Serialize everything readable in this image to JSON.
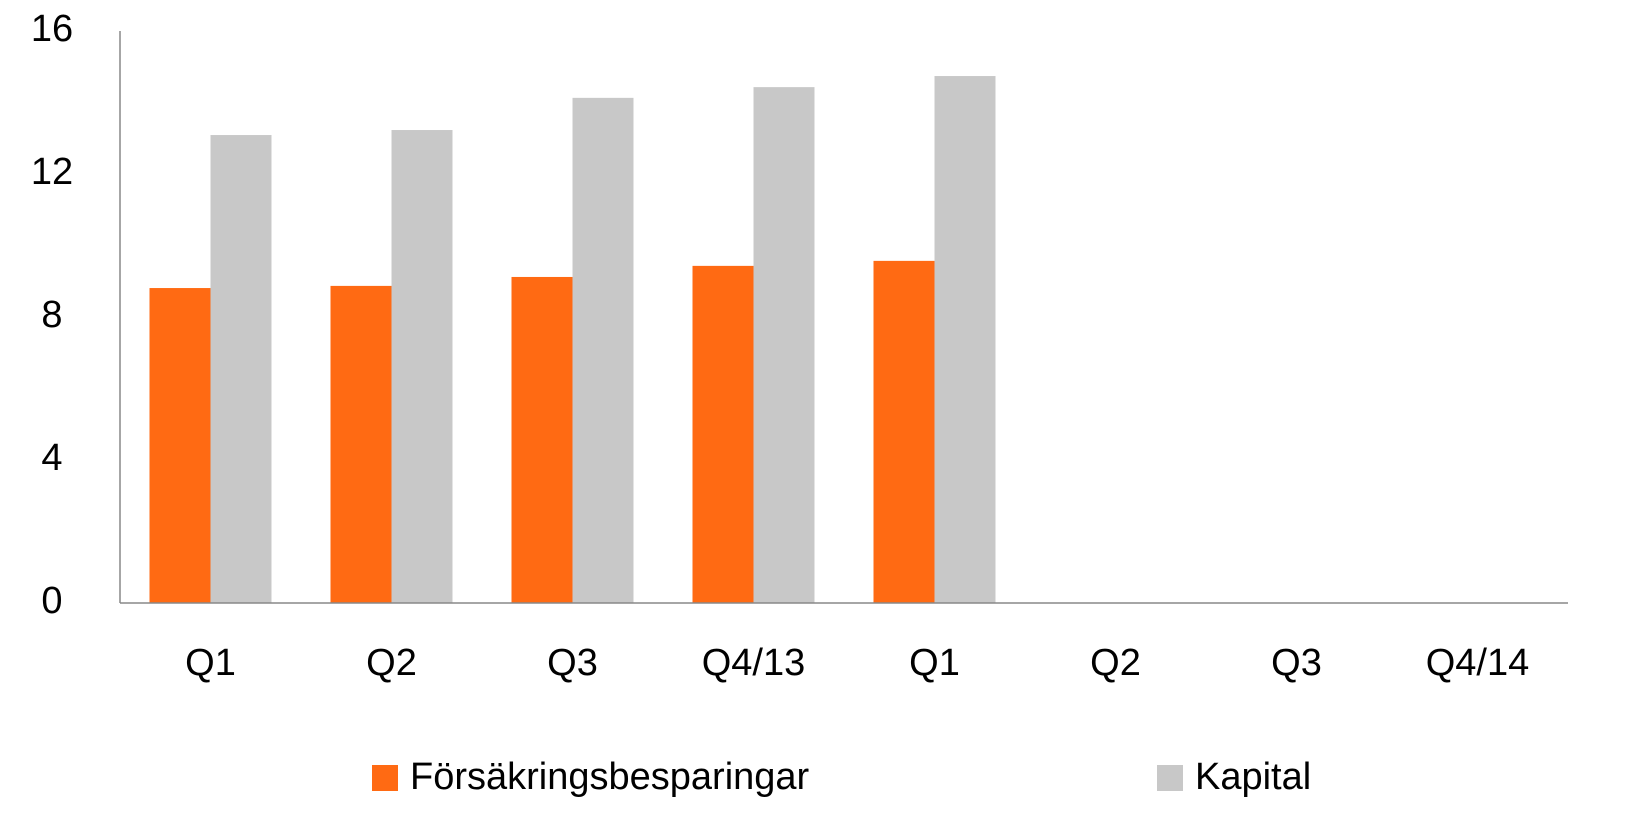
{
  "chart_data": {
    "type": "bar",
    "categories": [
      "Q1",
      "Q2",
      "Q3",
      "Q4/13",
      "Q1",
      "Q2",
      "Q3",
      "Q4/14"
    ],
    "series": [
      {
        "name": "Försäkringsbesparingar",
        "color": "#ff6a13",
        "values": [
          8.81,
          8.87,
          9.12,
          9.43,
          9.57,
          null,
          null,
          null
        ]
      },
      {
        "name": "Kapital",
        "color": "#c8c8c8",
        "values": [
          13.09,
          13.23,
          14.13,
          14.43,
          14.74,
          null,
          null,
          null
        ]
      }
    ],
    "ylim": [
      0,
      16
    ],
    "yticks": [
      0,
      4,
      8,
      12,
      16
    ],
    "grid": false,
    "legend": "bottom"
  }
}
